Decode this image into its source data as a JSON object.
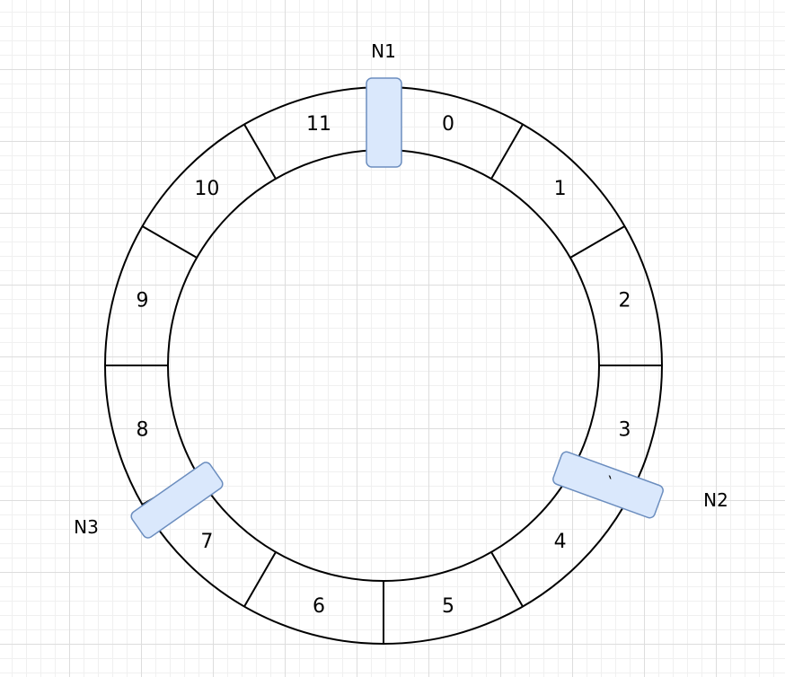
{
  "ring": {
    "segment_count": 12,
    "segment_labels": [
      "0",
      "1",
      "2",
      "3",
      "4",
      "5",
      "6",
      "7",
      "8",
      "9",
      "10",
      "11"
    ]
  },
  "nodes": [
    {
      "label": "N1",
      "glyph": ""
    },
    {
      "label": "N2",
      "glyph": "`"
    },
    {
      "label": "N3",
      "glyph": ""
    }
  ],
  "colors": {
    "ring_stroke": "#000000",
    "node_fill": "#dae8fc",
    "node_stroke": "#6c8ebf",
    "grid_major": "#dddddd",
    "grid_minor": "#f0f0f0"
  }
}
